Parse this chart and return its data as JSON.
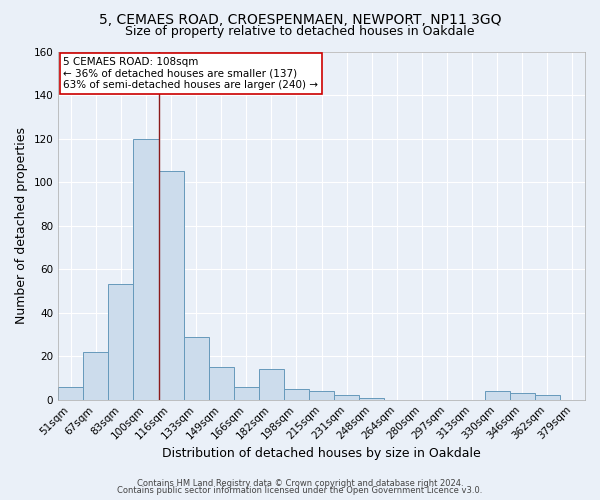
{
  "title1": "5, CEMAES ROAD, CROESPENMAEN, NEWPORT, NP11 3GQ",
  "title2": "Size of property relative to detached houses in Oakdale",
  "xlabel": "Distribution of detached houses by size in Oakdale",
  "ylabel": "Number of detached properties",
  "footer1": "Contains HM Land Registry data © Crown copyright and database right 2024.",
  "footer2": "Contains public sector information licensed under the Open Government Licence v3.0.",
  "bar_labels": [
    "51sqm",
    "67sqm",
    "83sqm",
    "100sqm",
    "116sqm",
    "133sqm",
    "149sqm",
    "166sqm",
    "182sqm",
    "198sqm",
    "215sqm",
    "231sqm",
    "248sqm",
    "264sqm",
    "280sqm",
    "297sqm",
    "313sqm",
    "330sqm",
    "346sqm",
    "362sqm",
    "379sqm"
  ],
  "bar_values": [
    6,
    22,
    53,
    120,
    105,
    29,
    15,
    6,
    14,
    5,
    4,
    2,
    1,
    0,
    0,
    0,
    0,
    4,
    3,
    2,
    0
  ],
  "bar_color": "#ccdcec",
  "bar_edge_color": "#6699bb",
  "vline_color": "#8b1a1a",
  "annotation_text": "5 CEMAES ROAD: 108sqm\n← 36% of detached houses are smaller (137)\n63% of semi-detached houses are larger (240) →",
  "annotation_box_color": "#ffffff",
  "annotation_box_edge": "#cc0000",
  "ylim": [
    0,
    160
  ],
  "yticks": [
    0,
    20,
    40,
    60,
    80,
    100,
    120,
    140,
    160
  ],
  "background_color": "#eaf0f8",
  "plot_background": "#eaf0f8",
  "grid_color": "#ffffff",
  "title_fontsize": 10,
  "subtitle_fontsize": 9,
  "axis_label_fontsize": 9,
  "tick_fontsize": 7.5,
  "footer_fontsize": 6.0
}
